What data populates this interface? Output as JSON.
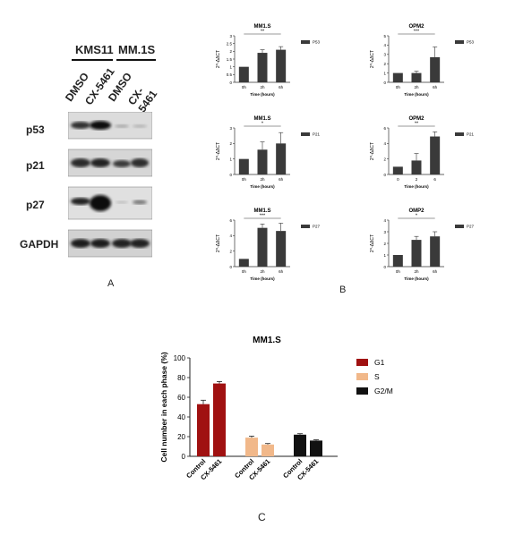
{
  "panel_labels": {
    "a": "A",
    "b": "B",
    "c": "C"
  },
  "western_blot": {
    "groups": [
      "KMS11",
      "MM.1S"
    ],
    "lanes": [
      "DMSO",
      "CX-5461",
      "DMSO",
      "CX-5461"
    ],
    "rows": [
      "p53",
      "p21",
      "p27",
      "GAPDH"
    ]
  },
  "chart_data": [
    {
      "id": "mm1s-p53",
      "type": "bar",
      "title": "MM1.S",
      "legend": "P53",
      "ylabel": "2^-ΔΔCT",
      "xlabel": "Time (hours)",
      "categories": [
        "0h",
        "2h",
        "6h"
      ],
      "values": [
        1.0,
        1.9,
        2.1
      ],
      "errors": [
        0,
        0.2,
        0.2
      ],
      "ylim": [
        0,
        3
      ],
      "yticks": [
        0,
        0.5,
        1.0,
        1.5,
        2.0,
        2.5,
        3.0
      ],
      "significance": "**"
    },
    {
      "id": "opm2-p53",
      "type": "bar",
      "title": "OPM2",
      "legend": "P53",
      "ylabel": "2^-ΔΔCT",
      "xlabel": "Time (hours)",
      "categories": [
        "0h",
        "2h",
        "6h"
      ],
      "values": [
        1.0,
        1.0,
        2.7
      ],
      "errors": [
        0,
        0.2,
        1.1
      ],
      "ylim": [
        0,
        5
      ],
      "yticks": [
        0,
        1,
        2,
        3,
        4,
        5
      ],
      "significance": "***"
    },
    {
      "id": "mm1s-p21",
      "type": "bar",
      "title": "MM1.S",
      "legend": "P21",
      "ylabel": "2^-ΔΔCT",
      "xlabel": "Time (hours)",
      "categories": [
        "0h",
        "2h",
        "6h"
      ],
      "values": [
        1.0,
        1.6,
        2.0
      ],
      "errors": [
        0,
        0.5,
        0.7
      ],
      "ylim": [
        0,
        3
      ],
      "yticks": [
        0,
        1,
        2,
        3
      ],
      "significance": "*"
    },
    {
      "id": "opm2-p21",
      "type": "bar",
      "title": "OPM2",
      "legend": "P21",
      "ylabel": "2^-ΔΔCT",
      "xlabel": "Time (hours)",
      "categories": [
        "0",
        "2",
        "6"
      ],
      "values": [
        1.0,
        1.8,
        4.9
      ],
      "errors": [
        0,
        0.9,
        0.6
      ],
      "ylim": [
        0,
        6
      ],
      "yticks": [
        0,
        2,
        4,
        6
      ],
      "significance": "**"
    },
    {
      "id": "mm1s-p27",
      "type": "bar",
      "title": "MM1.S",
      "legend": "P27",
      "ylabel": "2^-ΔΔCT",
      "xlabel": "Time (hours)",
      "categories": [
        "0h",
        "2h",
        "6h"
      ],
      "values": [
        1.0,
        5.0,
        4.6
      ],
      "errors": [
        0,
        0.5,
        1.0
      ],
      "ylim": [
        0,
        6
      ],
      "yticks": [
        0,
        2,
        4,
        6
      ],
      "significance": "***"
    },
    {
      "id": "opm2-p27",
      "type": "bar",
      "title": "OMP2",
      "legend": "P27",
      "ylabel": "2^-ΔΔCT",
      "xlabel": "Time (hours)",
      "categories": [
        "0h",
        "2h",
        "6h"
      ],
      "values": [
        1.0,
        2.3,
        2.6
      ],
      "errors": [
        0,
        0.3,
        0.4
      ],
      "ylim": [
        0,
        4
      ],
      "yticks": [
        0,
        1,
        2,
        3,
        4
      ],
      "significance": "*"
    },
    {
      "id": "cell-cycle",
      "type": "bar",
      "title": "MM1.S",
      "ylabel": "Cell number in each phase (%)",
      "ylim": [
        0,
        100
      ],
      "yticks": [
        0,
        20,
        40,
        60,
        80,
        100
      ],
      "groups": [
        "G1",
        "S",
        "G2/M"
      ],
      "categories": [
        "Control",
        "CX-5461"
      ],
      "series": [
        {
          "name": "G1",
          "color": "#a01111",
          "values": [
            53,
            74
          ],
          "errors": [
            4,
            2
          ]
        },
        {
          "name": "S",
          "color": "#f1b88a",
          "values": [
            19,
            12
          ],
          "errors": [
            1.5,
            1
          ]
        },
        {
          "name": "G2/M",
          "color": "#111111",
          "values": [
            22,
            16
          ],
          "errors": [
            1,
            0.8
          ]
        }
      ]
    }
  ]
}
